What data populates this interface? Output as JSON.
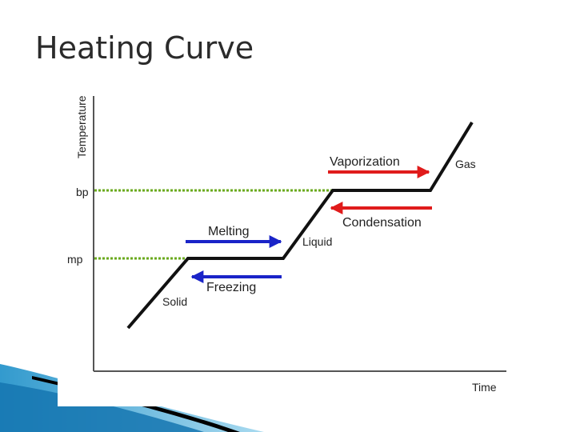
{
  "slide": {
    "title": "Heating Curve"
  },
  "diagram": {
    "y_axis_label": "Temperature",
    "x_axis_label": "Time",
    "levels": {
      "bp": "bp",
      "mp": "mp"
    },
    "phases": {
      "solid": "Solid",
      "liquid": "Liquid",
      "gas": "Gas"
    },
    "processes": {
      "melting": "Melting",
      "freezing": "Freezing",
      "vaporization": "Vaporization",
      "condensation": "Condensation"
    },
    "colors": {
      "heating_arrow": "#e01b1b",
      "melting_arrow": "#1a24c8",
      "guide_line": "#6aaa1e",
      "curve": "#111111",
      "decor_blue": "#1c8fc8"
    }
  }
}
